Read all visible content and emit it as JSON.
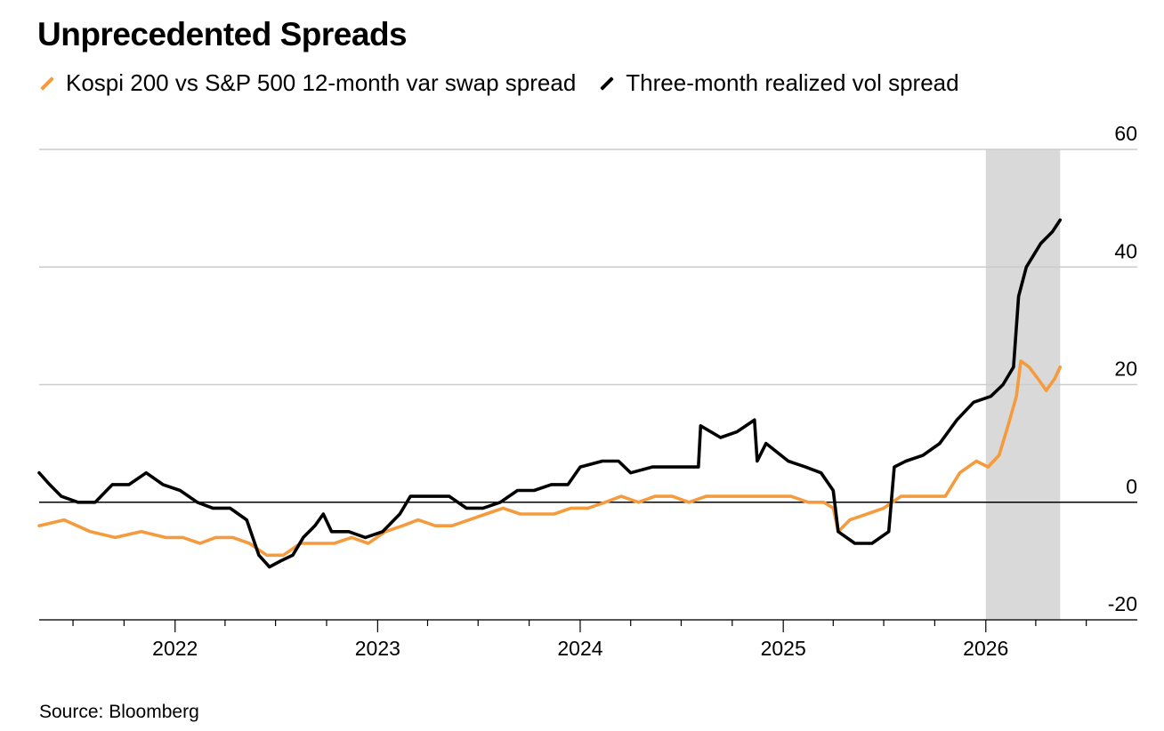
{
  "title": "Unprecedented Spreads",
  "source": "Source: Bloomberg",
  "colors": {
    "kospi": "#F59B3D",
    "realized": "#000000",
    "highlight": "#D9D9D9",
    "grid": "#CCCCCC",
    "zero": "#000000"
  },
  "chart_data": {
    "type": "line",
    "title": "Unprecedented Spreads",
    "xlabel": "",
    "ylabel": "",
    "xlim": [
      "2021-05-01",
      "2026-10-01"
    ],
    "ylim": [
      -20,
      60
    ],
    "x_ticks": [
      "2022",
      "2023",
      "2024",
      "2025",
      "2026"
    ],
    "y_ticks": [
      60,
      40,
      20,
      0,
      -20
    ],
    "grid": true,
    "legend": "top",
    "highlight_region": [
      "2026-01-01",
      "2026-05-15"
    ],
    "series": [
      {
        "name": "Kospi 200 vs S&P 500 12-month var swap spread",
        "color": "#F59B3D",
        "points": [
          [
            "2021-05-01",
            -4
          ],
          [
            "2021-06-15",
            -3
          ],
          [
            "2021-08-01",
            -5
          ],
          [
            "2021-09-15",
            -6
          ],
          [
            "2021-11-01",
            -5
          ],
          [
            "2021-12-15",
            -6
          ],
          [
            "2022-01-15",
            -6
          ],
          [
            "2022-02-15",
            -7
          ],
          [
            "2022-03-15",
            -6
          ],
          [
            "2022-04-15",
            -6
          ],
          [
            "2022-05-15",
            -7
          ],
          [
            "2022-06-15",
            -9
          ],
          [
            "2022-07-15",
            -9
          ],
          [
            "2022-08-15",
            -7
          ],
          [
            "2022-09-15",
            -7
          ],
          [
            "2022-10-15",
            -7
          ],
          [
            "2022-11-15",
            -6
          ],
          [
            "2022-12-15",
            -7
          ],
          [
            "2023-01-15",
            -5
          ],
          [
            "2023-02-15",
            -4
          ],
          [
            "2023-03-15",
            -3
          ],
          [
            "2023-04-15",
            -4
          ],
          [
            "2023-05-15",
            -4
          ],
          [
            "2023-06-15",
            -3
          ],
          [
            "2023-07-15",
            -2
          ],
          [
            "2023-08-15",
            -1
          ],
          [
            "2023-09-15",
            -2
          ],
          [
            "2023-10-15",
            -2
          ],
          [
            "2023-11-15",
            -2
          ],
          [
            "2023-12-15",
            -1
          ],
          [
            "2024-01-15",
            -1
          ],
          [
            "2024-02-15",
            0
          ],
          [
            "2024-03-15",
            1
          ],
          [
            "2024-04-15",
            0
          ],
          [
            "2024-05-15",
            1
          ],
          [
            "2024-06-15",
            1
          ],
          [
            "2024-07-15",
            0
          ],
          [
            "2024-08-15",
            1
          ],
          [
            "2024-09-15",
            1
          ],
          [
            "2024-10-15",
            1
          ],
          [
            "2024-11-15",
            1
          ],
          [
            "2024-12-15",
            1
          ],
          [
            "2025-01-15",
            1
          ],
          [
            "2025-02-15",
            0
          ],
          [
            "2025-03-15",
            0
          ],
          [
            "2025-04-01",
            -1
          ],
          [
            "2025-04-10",
            -5
          ],
          [
            "2025-05-01",
            -3
          ],
          [
            "2025-06-01",
            -2
          ],
          [
            "2025-07-01",
            -1
          ],
          [
            "2025-08-01",
            1
          ],
          [
            "2025-09-01",
            1
          ],
          [
            "2025-10-01",
            1
          ],
          [
            "2025-10-20",
            1
          ],
          [
            "2025-11-15",
            5
          ],
          [
            "2025-12-15",
            7
          ],
          [
            "2026-01-05",
            6
          ],
          [
            "2026-01-25",
            8
          ],
          [
            "2026-02-10",
            13
          ],
          [
            "2026-02-25",
            18
          ],
          [
            "2026-03-05",
            24
          ],
          [
            "2026-03-20",
            23
          ],
          [
            "2026-04-05",
            21
          ],
          [
            "2026-04-20",
            19
          ],
          [
            "2026-05-05",
            21
          ],
          [
            "2026-05-15",
            23
          ]
        ]
      },
      {
        "name": "Three-month realized vol spread",
        "color": "#000000",
        "points": [
          [
            "2021-05-01",
            5
          ],
          [
            "2021-05-20",
            3
          ],
          [
            "2021-06-10",
            1
          ],
          [
            "2021-07-10",
            0
          ],
          [
            "2021-08-10",
            0
          ],
          [
            "2021-09-10",
            3
          ],
          [
            "2021-10-10",
            3
          ],
          [
            "2021-11-10",
            5
          ],
          [
            "2021-12-10",
            3
          ],
          [
            "2022-01-10",
            2
          ],
          [
            "2022-02-10",
            0
          ],
          [
            "2022-03-10",
            -1
          ],
          [
            "2022-04-10",
            -1
          ],
          [
            "2022-05-10",
            -3
          ],
          [
            "2022-06-01",
            -9
          ],
          [
            "2022-06-20",
            -11
          ],
          [
            "2022-07-10",
            -10
          ],
          [
            "2022-08-01",
            -9
          ],
          [
            "2022-08-20",
            -6
          ],
          [
            "2022-09-10",
            -4
          ],
          [
            "2022-09-25",
            -2
          ],
          [
            "2022-10-10",
            -5
          ],
          [
            "2022-11-10",
            -5
          ],
          [
            "2022-12-10",
            -6
          ],
          [
            "2023-01-10",
            -5
          ],
          [
            "2023-02-10",
            -2
          ],
          [
            "2023-03-01",
            1
          ],
          [
            "2023-04-10",
            1
          ],
          [
            "2023-05-10",
            1
          ],
          [
            "2023-06-10",
            -1
          ],
          [
            "2023-07-10",
            -1
          ],
          [
            "2023-08-10",
            0
          ],
          [
            "2023-09-10",
            2
          ],
          [
            "2023-10-10",
            2
          ],
          [
            "2023-11-10",
            3
          ],
          [
            "2023-12-10",
            3
          ],
          [
            "2024-01-01",
            6
          ],
          [
            "2024-02-10",
            7
          ],
          [
            "2024-03-10",
            7
          ],
          [
            "2024-04-01",
            5
          ],
          [
            "2024-05-10",
            6
          ],
          [
            "2024-06-10",
            6
          ],
          [
            "2024-07-10",
            6
          ],
          [
            "2024-08-01",
            6
          ],
          [
            "2024-08-05",
            13
          ],
          [
            "2024-09-10",
            11
          ],
          [
            "2024-10-10",
            12
          ],
          [
            "2024-11-10",
            14
          ],
          [
            "2024-11-15",
            7
          ],
          [
            "2024-12-01",
            10
          ],
          [
            "2025-01-10",
            7
          ],
          [
            "2025-02-10",
            6
          ],
          [
            "2025-03-10",
            5
          ],
          [
            "2025-04-01",
            2
          ],
          [
            "2025-04-10",
            -5
          ],
          [
            "2025-05-10",
            -7
          ],
          [
            "2025-06-10",
            -7
          ],
          [
            "2025-07-10",
            -5
          ],
          [
            "2025-07-20",
            6
          ],
          [
            "2025-08-10",
            7
          ],
          [
            "2025-09-10",
            8
          ],
          [
            "2025-10-10",
            10
          ],
          [
            "2025-11-10",
            14
          ],
          [
            "2025-12-10",
            17
          ],
          [
            "2026-01-10",
            18
          ],
          [
            "2026-02-01",
            20
          ],
          [
            "2026-02-20",
            23
          ],
          [
            "2026-03-01",
            35
          ],
          [
            "2026-03-15",
            40
          ],
          [
            "2026-04-10",
            44
          ],
          [
            "2026-05-01",
            46
          ],
          [
            "2026-05-15",
            48
          ]
        ]
      }
    ]
  }
}
